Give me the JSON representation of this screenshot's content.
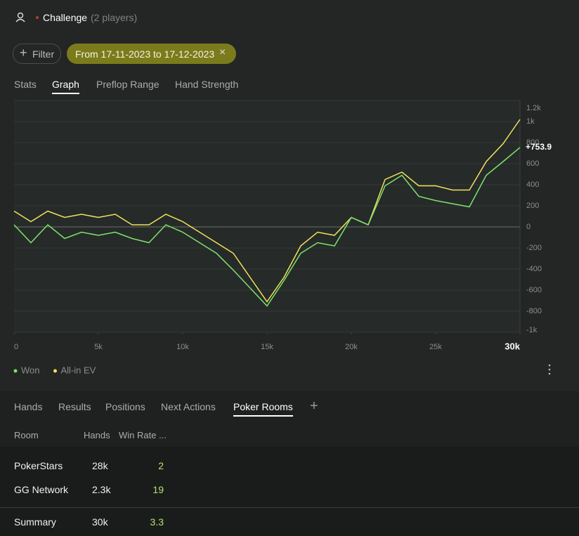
{
  "header": {
    "title": "Challenge",
    "subtitle": "(2 players)"
  },
  "filters": {
    "add": "Filter",
    "date_range": "From 17-11-2023 to 17-12-2023"
  },
  "tabs": {
    "items": [
      "Stats",
      "Graph",
      "Preflop Range",
      "Hand Strength"
    ],
    "active": 1
  },
  "chart_data": {
    "type": "line",
    "x": [
      0,
      1000,
      2000,
      3000,
      4000,
      5000,
      6000,
      7000,
      8000,
      9000,
      10000,
      11000,
      12000,
      13000,
      14000,
      15000,
      16000,
      17000,
      18000,
      19000,
      20000,
      21000,
      22000,
      23000,
      24000,
      25000,
      26000,
      27000,
      28000,
      29000,
      30000
    ],
    "series": [
      {
        "name": "Won",
        "color": "#7ee36c",
        "values": [
          20,
          -150,
          20,
          -110,
          -50,
          -80,
          -50,
          -110,
          -150,
          20,
          -50,
          -150,
          -250,
          -410,
          -580,
          -750,
          -510,
          -250,
          -150,
          -180,
          90,
          20,
          390,
          490,
          290,
          250,
          220,
          190,
          490,
          620,
          753.9
        ],
        "value_labels": [
          null,
          null,
          null,
          null,
          null,
          null,
          null,
          null,
          null,
          null,
          null,
          null,
          null,
          null,
          null,
          null,
          null,
          null,
          null,
          null,
          null,
          null,
          null,
          null,
          null,
          null,
          null,
          null,
          null,
          null,
          "+753.9"
        ]
      },
      {
        "name": "All-in EV",
        "color": "#f0e35a",
        "values": [
          150,
          50,
          150,
          90,
          120,
          90,
          120,
          20,
          20,
          120,
          50,
          -50,
          -150,
          -250,
          -480,
          -710,
          -480,
          -180,
          -50,
          -80,
          90,
          20,
          450,
          520,
          390,
          390,
          350,
          350,
          620,
          790,
          1020
        ]
      }
    ],
    "xlim": [
      0,
      30000
    ],
    "ylim": [
      -1000,
      1200
    ],
    "xticks": [
      0,
      {
        "value": 5000,
        "label": "5k"
      },
      {
        "value": 10000,
        "label": "10k"
      },
      {
        "value": 15000,
        "label": "15k"
      },
      {
        "value": 20000,
        "label": "20k"
      },
      {
        "value": 25000,
        "label": "25k"
      },
      {
        "value": 30000,
        "label": "30k"
      }
    ],
    "yticks": [
      {
        "value": 1200,
        "label": "1.2k"
      },
      {
        "value": 1000,
        "label": "1k"
      },
      800,
      600,
      400,
      200,
      0,
      -200,
      -400,
      -600,
      -800,
      {
        "value": -1000,
        "label": "-1k"
      }
    ],
    "grid": true
  },
  "bottom_tabs": {
    "items": [
      "Hands",
      "Results",
      "Positions",
      "Next Actions",
      "Poker Rooms"
    ],
    "active": 4
  },
  "table": {
    "columns": [
      "Room",
      "Hands",
      "Win Rate ..."
    ],
    "rows": [
      [
        "PokerStars",
        "28k",
        2
      ],
      [
        "GG Network",
        "2.3k",
        19
      ]
    ],
    "summary": [
      "Summary",
      "30k",
      3.3
    ]
  }
}
